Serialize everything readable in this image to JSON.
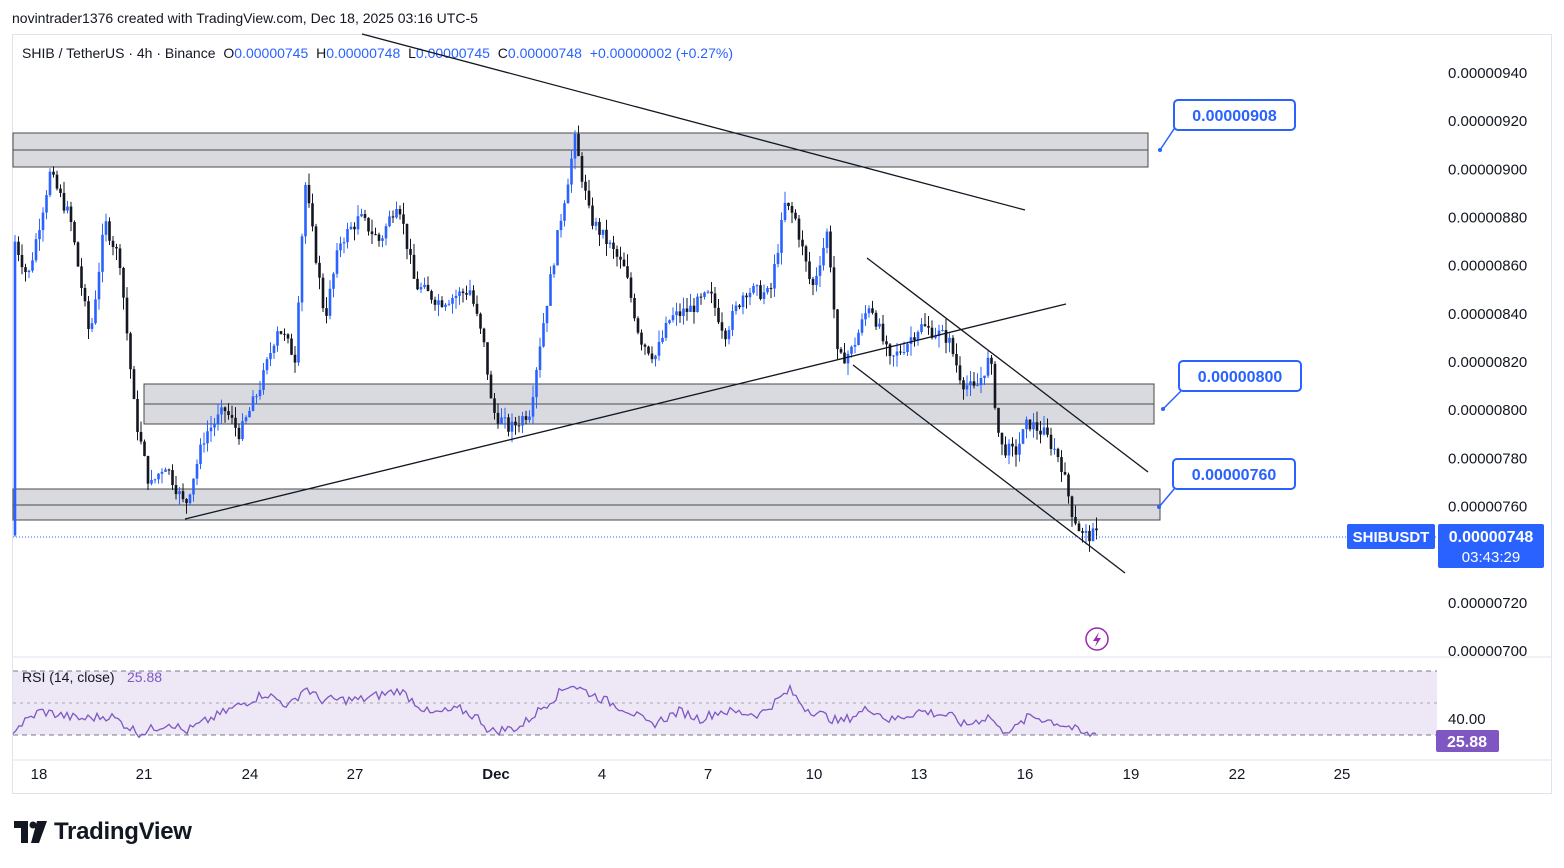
{
  "header": {
    "credit": "novintrader1376 created with TradingView.com, Dec 18, 2025 03:16 UTC-5"
  },
  "legend": {
    "symbol": "SHIB / TetherUS · 4h · Binance",
    "o_label": "O",
    "o": "0.00000745",
    "h_label": "H",
    "h": "0.00000748",
    "l_label": "L",
    "l": "0.00000745",
    "c_label": "C",
    "c": "0.00000748",
    "change": "+0.00000002 (+0.27%)"
  },
  "price_tag": {
    "symbol": "SHIBUSDT",
    "price": "0.00000748",
    "countdown": "03:43:29"
  },
  "callouts": [
    "0.00000908",
    "0.00000800",
    "0.00000760"
  ],
  "rsi": {
    "label": "RSI (14, close)",
    "value": "25.88",
    "level_label": "40.00"
  },
  "brand": {
    "name": "TradingView"
  },
  "colors": {
    "up": "#2962ff",
    "down": "#131722",
    "accent": "#2962ff",
    "rsi": "#7e57c2",
    "zone": "#d1d4dc"
  },
  "chart_data": {
    "type": "candlestick",
    "y_ticks": [
      "0.00000940",
      "0.00000920",
      "0.00000900",
      "0.00000880",
      "0.00000860",
      "0.00000840",
      "0.00000820",
      "0.00000800",
      "0.00000780",
      "0.00000760",
      "0.00000720",
      "0.00000700"
    ],
    "y_range": [
      7e-06,
      9.5e-06
    ],
    "x_ticks": [
      "18",
      "21",
      "24",
      "27",
      "Dec",
      "4",
      "7",
      "10",
      "13",
      "16",
      "19",
      "22",
      "25"
    ],
    "last_price": 7.48e-06,
    "zones": [
      [
        9.02e-06,
        9.16e-06
      ],
      [
        7.95e-06,
        8.12e-06
      ],
      [
        7.53e-06,
        7.67e-06
      ]
    ],
    "rsi_range": [
      20,
      80
    ],
    "rsi_levels": [
      70,
      40,
      30
    ]
  }
}
